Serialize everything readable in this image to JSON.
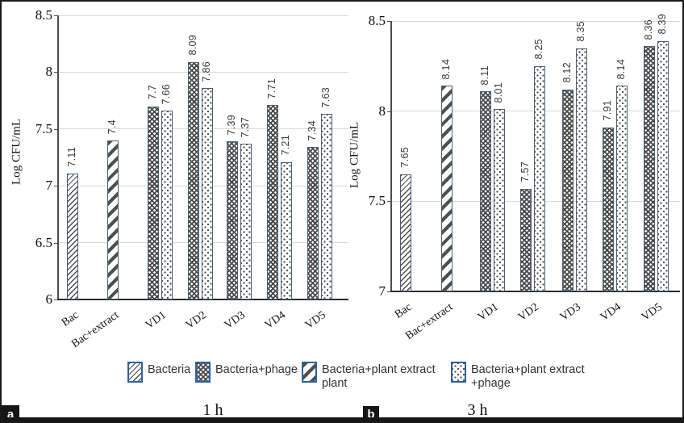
{
  "figure": {
    "panels": [
      {
        "letter": "a",
        "caption": "1 h"
      },
      {
        "letter": "b",
        "caption": "3 h"
      }
    ],
    "legend": {
      "items": [
        {
          "label": "Bacteria",
          "pattern": "fine-hatch"
        },
        {
          "label": "Bacteria+phage",
          "pattern": "weave"
        },
        {
          "label": "Bacteria+plant extract\nplant",
          "pattern": "bold-stripe"
        },
        {
          "label": "Bacteria+plant extract\n+phage",
          "pattern": "dots"
        }
      ]
    },
    "colors": {
      "bar_border": "#4c5e77",
      "legend_swatch_border": "#2e5fa3",
      "gridline": "#d9d9d9",
      "axis": "#4d4d4d",
      "pattern_ink": "#4a4a4a"
    }
  },
  "chart_data": [
    {
      "type": "bar",
      "panel": "a",
      "title": "1 h",
      "ylabel": "Log CFU/mL",
      "ylim": [
        6,
        8.5
      ],
      "yticks": [
        6,
        6.5,
        7,
        7.5,
        8,
        8.5
      ],
      "grid": true,
      "legend_position": "bottom-shared",
      "categories": [
        "Bac",
        "Bac+extract",
        "VD1",
        "VD2",
        "VD3",
        "VD4",
        "VD5"
      ],
      "series": [
        {
          "name": "Bacteria",
          "pattern": "fine-hatch",
          "values": [
            7.11,
            null,
            null,
            null,
            null,
            null,
            null
          ]
        },
        {
          "name": "Bacteria+plant extract plant",
          "pattern": "bold-stripe",
          "values": [
            null,
            7.4,
            null,
            null,
            null,
            null,
            null
          ]
        },
        {
          "name": "Bacteria+phage",
          "pattern": "weave",
          "values": [
            null,
            null,
            7.7,
            8.09,
            7.39,
            7.71,
            7.34
          ]
        },
        {
          "name": "Bacteria+plant extract +phage",
          "pattern": "dots",
          "values": [
            null,
            null,
            7.66,
            7.86,
            7.37,
            7.21,
            7.63
          ]
        }
      ]
    },
    {
      "type": "bar",
      "panel": "b",
      "title": "3 h",
      "ylabel": "Log CFU/mL",
      "ylim": [
        7,
        8.5
      ],
      "yticks": [
        7,
        7.5,
        8,
        8.5
      ],
      "grid": true,
      "legend_position": "bottom-shared",
      "categories": [
        "Bac",
        "Bac+extract",
        "VD1",
        "VD2",
        "VD3",
        "VD4",
        "VD5"
      ],
      "series": [
        {
          "name": "Bacteria",
          "pattern": "fine-hatch",
          "values": [
            7.65,
            null,
            null,
            null,
            null,
            null,
            null
          ]
        },
        {
          "name": "Bacteria+plant extract plant",
          "pattern": "bold-stripe",
          "values": [
            null,
            8.14,
            null,
            null,
            null,
            null,
            null
          ]
        },
        {
          "name": "Bacteria+phage",
          "pattern": "weave",
          "values": [
            null,
            null,
            8.11,
            7.57,
            8.12,
            7.91,
            8.36
          ]
        },
        {
          "name": "Bacteria+plant extract +phage",
          "pattern": "dots",
          "values": [
            null,
            null,
            8.01,
            8.25,
            8.35,
            8.14,
            8.39
          ]
        }
      ]
    }
  ]
}
